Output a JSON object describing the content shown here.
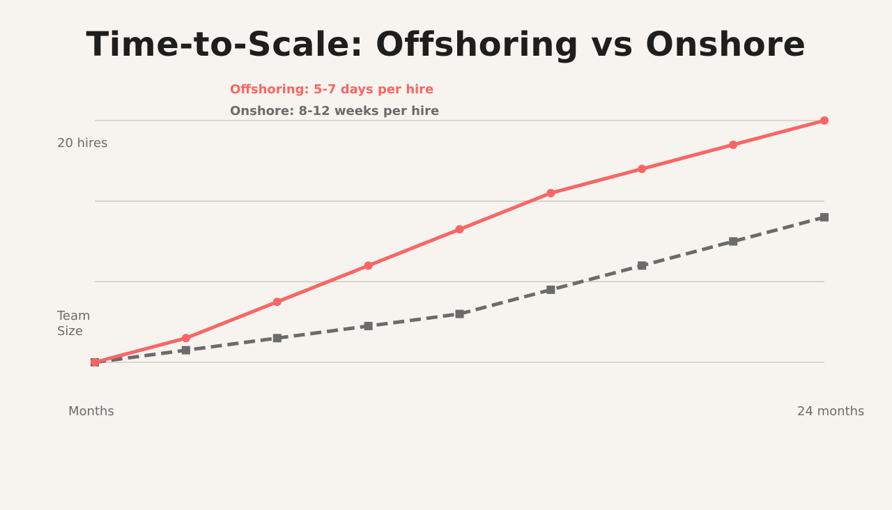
{
  "colors": {
    "background": "#f7f4ef",
    "offshoring": "#f96565",
    "onshore": "#6b6b6b",
    "grid": "#c9c5be",
    "title": "#1e1e1c"
  },
  "chart_data": {
    "type": "line",
    "title": "Time-to-Scale: Offshoring vs Onshore",
    "legend": [
      "Offshoring: 5-7 days per hire",
      "Onshore: 8-12 weeks per hire"
    ],
    "ylabel": "Team Size",
    "ytick_top": "20 hires",
    "xlabel": "Months",
    "xtick_end": "24 months",
    "ylim": [
      0,
      20
    ],
    "xlim": [
      0,
      24
    ],
    "grid": true,
    "x": [
      0,
      3,
      6,
      9,
      12,
      15,
      18,
      21,
      24
    ],
    "series": [
      {
        "name": "Offshoring: 5-7 days per hire",
        "values": [
          0,
          2,
          5,
          8,
          11,
          14,
          16,
          18,
          20
        ],
        "style": "solid",
        "marker": "circle"
      },
      {
        "name": "Onshore: 8-12 weeks per hire",
        "values": [
          0,
          1,
          2,
          3,
          4,
          6,
          8,
          10,
          12
        ],
        "style": "dashed",
        "marker": "square"
      }
    ]
  }
}
